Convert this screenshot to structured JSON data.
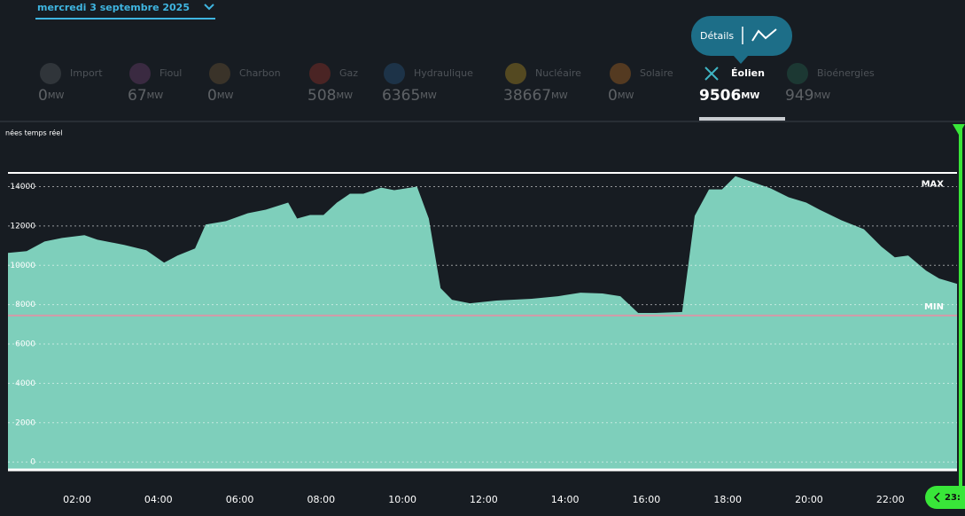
{
  "header": {
    "date": "mercredi 3 septembre 2025",
    "tooltip": "Détails"
  },
  "sources": [
    {
      "name": "Import",
      "value": 0,
      "unit": "MW",
      "color": "#6b6f73",
      "selected": false
    },
    {
      "name": "Fioul",
      "value": 67,
      "unit": "MW",
      "color": "#8a4b8a",
      "selected": false
    },
    {
      "name": "Charbon",
      "value": 0,
      "unit": "MW",
      "color": "#8a6a3a",
      "selected": false
    },
    {
      "name": "Gaz",
      "value": 508,
      "unit": "MW",
      "color": "#c0392b",
      "selected": false
    },
    {
      "name": "Hydraulique",
      "value": 6365,
      "unit": "MW",
      "color": "#2b6aa0",
      "selected": false
    },
    {
      "name": "Nucléaire",
      "value": 38667,
      "unit": "MW",
      "color": "#e0b020",
      "selected": false
    },
    {
      "name": "Solaire",
      "value": 0,
      "unit": "MW",
      "color": "#e08020",
      "selected": false
    },
    {
      "name": "Éolien",
      "value": 9506,
      "unit": "MW",
      "color": "#3fb5c4",
      "selected": true
    },
    {
      "name": "Bioénergies",
      "value": 949,
      "unit": "MW",
      "color": "#2a7a5a",
      "selected": false
    }
  ],
  "chart_data": {
    "type": "area",
    "subtitle": "nées temps réel",
    "color": "#7ecfbb",
    "x": [
      0.3,
      0.76,
      1.2,
      1.63,
      2.18,
      2.5,
      3.16,
      3.7,
      4.14,
      4.47,
      4.9,
      5.16,
      5.66,
      6.2,
      6.64,
      7.19,
      7.41,
      7.73,
      8.06,
      8.39,
      8.71,
      9.04,
      9.48,
      9.8,
      10.36,
      10.65,
      10.94,
      11.22,
      11.66,
      12.31,
      13.18,
      13.83,
      14.38,
      14.92,
      15.36,
      15.8,
      16.23,
      16.88,
      17.19,
      17.54,
      17.86,
      18.19,
      18.63,
      19.06,
      19.5,
      19.93,
      20.26,
      20.8,
      21.35,
      21.78,
      22.11,
      22.44,
      22.88,
      23.2,
      23.64
    ],
    "values": [
      10630,
      10720,
      11210,
      11390,
      11530,
      11300,
      11040,
      10770,
      10140,
      10500,
      10860,
      12070,
      12250,
      12650,
      12830,
      13190,
      12380,
      12560,
      12560,
      13190,
      13640,
      13640,
      13950,
      13820,
      14000,
      12380,
      8840,
      8250,
      8070,
      8210,
      8300,
      8430,
      8610,
      8570,
      8430,
      7580,
      7580,
      7630,
      12520,
      13860,
      13860,
      14530,
      14220,
      13910,
      13460,
      13190,
      12830,
      12290,
      11840,
      10950,
      10410,
      10500,
      9730,
      9330,
      9060
    ],
    "xlim": [
      0.3,
      23.64
    ],
    "ylim": [
      -400,
      14700
    ],
    "yticks": [
      0,
      2000,
      4000,
      6000,
      8000,
      10000,
      12000,
      14000
    ],
    "xticks": [
      {
        "value": 2,
        "label": "02:00"
      },
      {
        "value": 4,
        "label": "04:00"
      },
      {
        "value": 6,
        "label": "06:00"
      },
      {
        "value": 8,
        "label": "08:00"
      },
      {
        "value": 10,
        "label": "10:00"
      },
      {
        "value": 12,
        "label": "12:00"
      },
      {
        "value": 14,
        "label": "14:00"
      },
      {
        "value": 16,
        "label": "16:00"
      },
      {
        "value": 18,
        "label": "18:00"
      },
      {
        "value": 20,
        "label": "20:00"
      },
      {
        "value": 22,
        "label": "22:00"
      }
    ],
    "max_label": "MAX",
    "min_label": "MIN",
    "min_value": 7450,
    "current_time": "23:",
    "grid": true
  }
}
